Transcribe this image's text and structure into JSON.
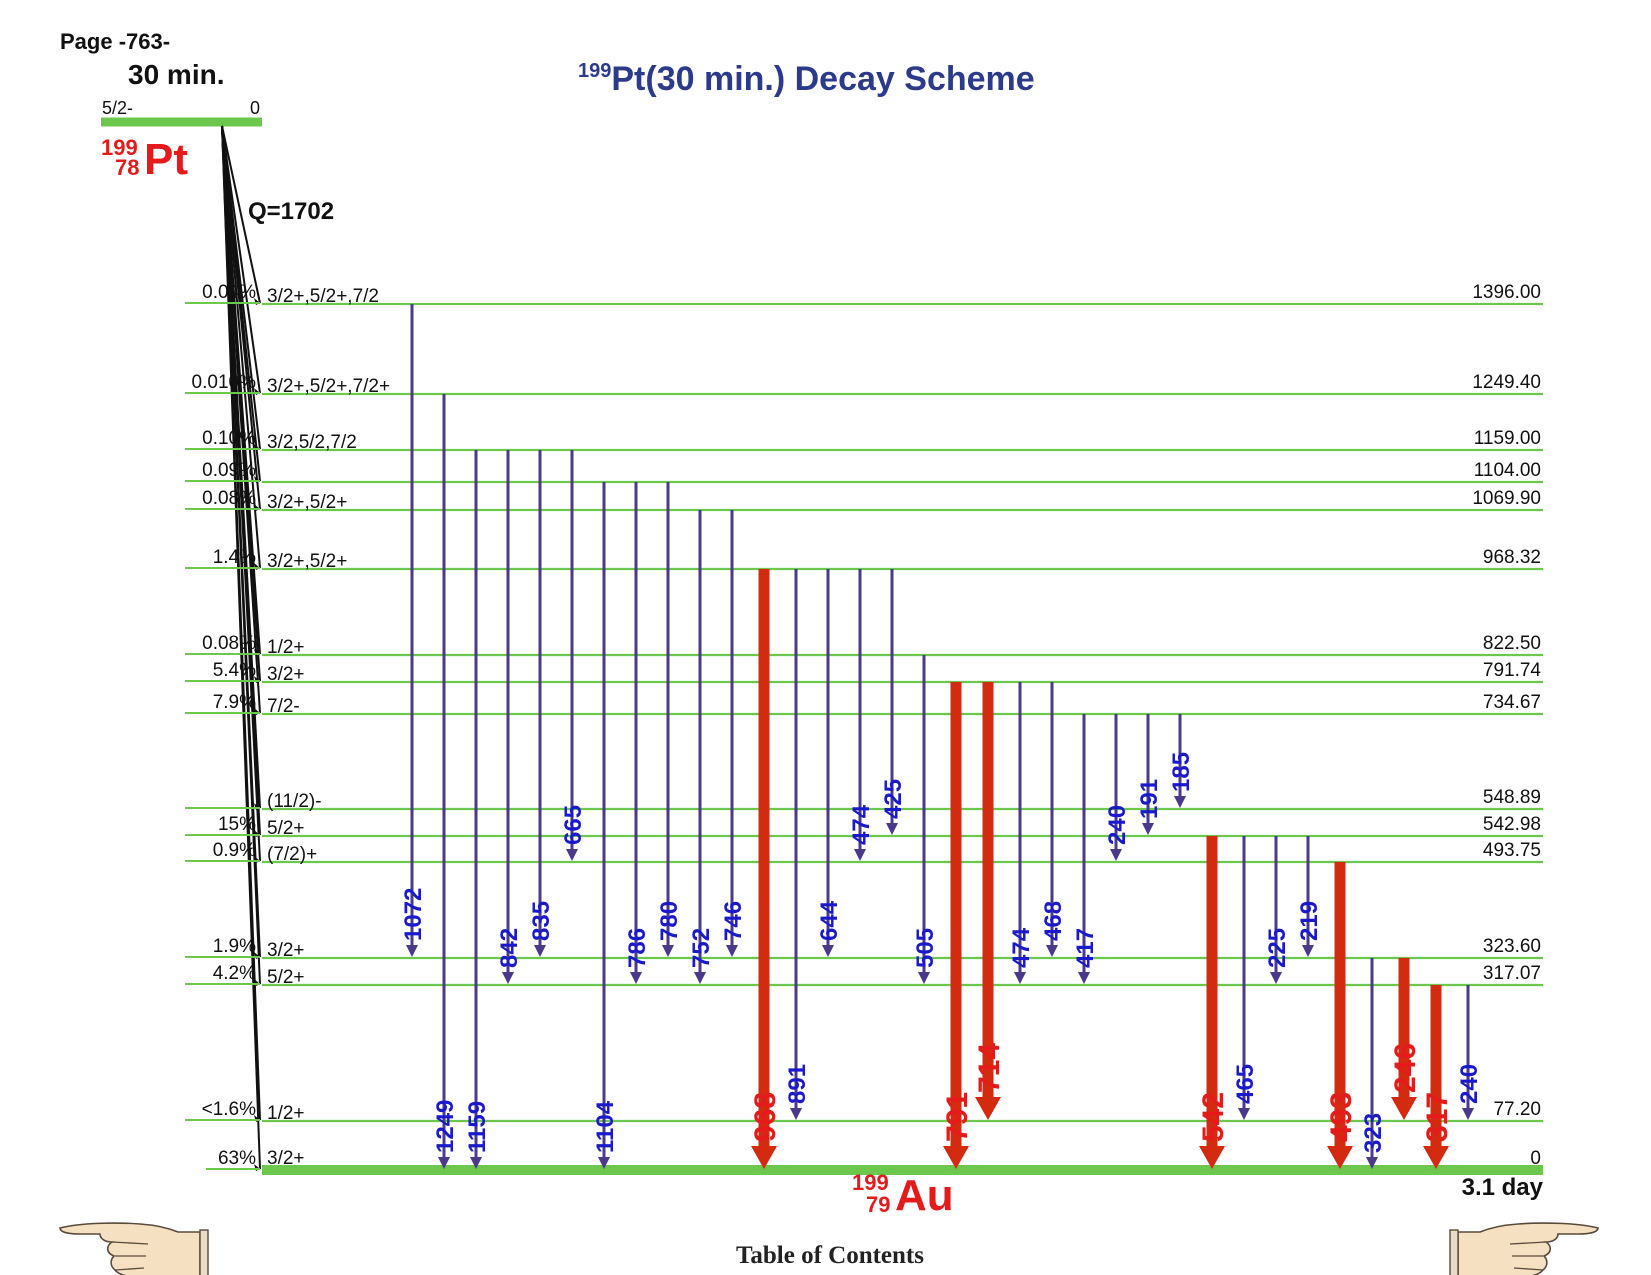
{
  "page_label": "Page -763-",
  "title": {
    "mass": "199",
    "rest": "Pt(30 min.) Decay Scheme"
  },
  "parent": {
    "halflife": "30 min.",
    "spin": "5/2-",
    "energy": "0",
    "nuclide": {
      "mass": "199",
      "z": "78",
      "symbol": "Pt"
    },
    "q_value": "Q=1702"
  },
  "daughter": {
    "nuclide": {
      "mass": "199",
      "z": "79",
      "symbol": "Au"
    },
    "halflife": "3.1 day"
  },
  "levels": [
    {
      "energy": 1396.0,
      "label": "1396.00",
      "spin": "3/2+,5/2+,7/2",
      "beta": "0.04%"
    },
    {
      "energy": 1249.4,
      "label": "1249.40",
      "spin": "3/2+,5/2+,7/2+",
      "beta": "0.010%"
    },
    {
      "energy": 1159.0,
      "label": "1159.00",
      "spin": "3/2,5/2,7/2",
      "beta": "0.10%"
    },
    {
      "energy": 1104.0,
      "label": "1104.00",
      "spin": "",
      "beta": "0.09%"
    },
    {
      "energy": 1069.9,
      "label": "1069.90",
      "spin": "3/2+,5/2+",
      "beta": "0.08%"
    },
    {
      "energy": 968.32,
      "label": "968.32",
      "spin": "3/2+,5/2+",
      "beta": "1.4%"
    },
    {
      "energy": 822.5,
      "label": "822.50",
      "spin": "1/2+",
      "beta": "0.08%"
    },
    {
      "energy": 791.74,
      "label": "791.74",
      "spin": "3/2+",
      "beta": "5.4%"
    },
    {
      "energy": 734.67,
      "label": "734.67",
      "spin": "7/2-",
      "beta": "7.9%"
    },
    {
      "energy": 548.89,
      "label": "548.89",
      "spin": "(11/2)-",
      "beta": ""
    },
    {
      "energy": 542.98,
      "label": "542.98",
      "spin": "5/2+",
      "beta": "15%"
    },
    {
      "energy": 493.75,
      "label": "493.75",
      "spin": "(7/2)+",
      "beta": "0.9%"
    },
    {
      "energy": 323.6,
      "label": "323.60",
      "spin": "3/2+",
      "beta": "1.9%"
    },
    {
      "energy": 317.07,
      "label": "317.07",
      "spin": "5/2+",
      "beta": "4.2%"
    },
    {
      "energy": 77.2,
      "label": "77.20",
      "spin": "1/2+",
      "beta": "<1.6%"
    },
    {
      "energy": 0,
      "label": "0",
      "spin": "3/2+",
      "beta": "63%"
    }
  ],
  "transitions": [
    {
      "label": "1072",
      "from": 1396.0,
      "to": 323.6,
      "strong": false
    },
    {
      "label": "1249",
      "from": 1249.4,
      "to": 0,
      "strong": false
    },
    {
      "label": "1159",
      "from": 1159.0,
      "to": 0,
      "strong": false
    },
    {
      "label": "842",
      "from": 1159.0,
      "to": 317.07,
      "strong": false
    },
    {
      "label": "835",
      "from": 1159.0,
      "to": 323.6,
      "strong": false
    },
    {
      "label": "665",
      "from": 1159.0,
      "to": 493.75,
      "strong": false
    },
    {
      "label": "1104",
      "from": 1104.0,
      "to": 0,
      "strong": false
    },
    {
      "label": "786",
      "from": 1104.0,
      "to": 317.07,
      "strong": false
    },
    {
      "label": "780",
      "from": 1104.0,
      "to": 323.6,
      "strong": false
    },
    {
      "label": "752",
      "from": 1069.9,
      "to": 317.07,
      "strong": false
    },
    {
      "label": "746",
      "from": 1069.9,
      "to": 323.6,
      "strong": false
    },
    {
      "label": "968",
      "from": 968.32,
      "to": 0,
      "strong": true
    },
    {
      "label": "891",
      "from": 968.32,
      "to": 77.2,
      "strong": false
    },
    {
      "label": "644",
      "from": 968.32,
      "to": 323.6,
      "strong": false
    },
    {
      "label": "474",
      "from": 968.32,
      "to": 493.75,
      "strong": false
    },
    {
      "label": "425",
      "from": 968.32,
      "to": 542.98,
      "strong": false
    },
    {
      "label": "505",
      "from": 822.5,
      "to": 317.07,
      "strong": false
    },
    {
      "label": "791",
      "from": 791.74,
      "to": 0,
      "strong": true
    },
    {
      "label": "714",
      "from": 791.74,
      "to": 77.2,
      "strong": true
    },
    {
      "label": "474",
      "from": 791.74,
      "to": 317.07,
      "strong": false
    },
    {
      "label": "468",
      "from": 791.74,
      "to": 323.6,
      "strong": false
    },
    {
      "label": "417",
      "from": 734.67,
      "to": 317.07,
      "strong": false
    },
    {
      "label": "240",
      "from": 734.67,
      "to": 493.75,
      "strong": false
    },
    {
      "label": "191",
      "from": 734.67,
      "to": 542.98,
      "strong": false
    },
    {
      "label": "185",
      "from": 734.67,
      "to": 548.89,
      "strong": false
    },
    {
      "label": "542",
      "from": 542.98,
      "to": 0,
      "strong": true
    },
    {
      "label": "465",
      "from": 542.98,
      "to": 77.2,
      "strong": false
    },
    {
      "label": "225",
      "from": 542.98,
      "to": 317.07,
      "strong": false
    },
    {
      "label": "219",
      "from": 542.98,
      "to": 323.6,
      "strong": false
    },
    {
      "label": "493",
      "from": 493.75,
      "to": 0,
      "strong": true
    },
    {
      "label": "323",
      "from": 323.6,
      "to": 0,
      "strong": false
    },
    {
      "label": "246",
      "from": 323.6,
      "to": 77.2,
      "strong": true
    },
    {
      "label": "317",
      "from": 317.07,
      "to": 0,
      "strong": true
    },
    {
      "label": "240",
      "from": 317.07,
      "to": 77.2,
      "strong": false
    }
  ],
  "footer": {
    "toc_label": "Table of Contents"
  },
  "icons": {
    "prev": "pointing-hand-left-icon",
    "next": "pointing-hand-right-icon"
  },
  "colors": {
    "level": "#6cc84c",
    "gamma_weak": "#4b3a8c",
    "gamma_strong": "#d42a10",
    "label_weak": "#1a1acc",
    "label_strong": "#e51b1b",
    "title": "#2c3a8c",
    "nuclide": "#e51b1b"
  }
}
